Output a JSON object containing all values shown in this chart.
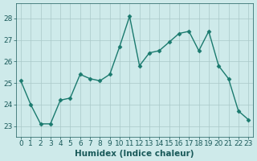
{
  "x": [
    0,
    1,
    2,
    3,
    4,
    5,
    6,
    7,
    8,
    9,
    10,
    11,
    12,
    13,
    14,
    15,
    16,
    17,
    18,
    19,
    20,
    21,
    22,
    23
  ],
  "y": [
    25.1,
    24.0,
    23.1,
    23.1,
    24.2,
    24.3,
    25.4,
    25.2,
    25.1,
    25.4,
    26.7,
    28.1,
    25.8,
    26.4,
    26.5,
    26.9,
    27.3,
    27.4,
    26.5,
    27.4,
    25.8,
    25.2,
    23.7,
    23.3
  ],
  "line_color": "#1a7a6e",
  "marker": "D",
  "marker_size": 2.5,
  "bg_color": "#ceeaea",
  "grid_color": "#aac8c8",
  "xlabel": "Humidex (Indice chaleur)",
  "ylim": [
    22.5,
    28.7
  ],
  "xlim": [
    -0.5,
    23.5
  ],
  "yticks": [
    23,
    24,
    25,
    26,
    27,
    28
  ],
  "xticks": [
    0,
    1,
    2,
    3,
    4,
    5,
    6,
    7,
    8,
    9,
    10,
    11,
    12,
    13,
    14,
    15,
    16,
    17,
    18,
    19,
    20,
    21,
    22,
    23
  ],
  "font_color": "#1a5a5a",
  "xlabel_fontsize": 7.5,
  "tick_fontsize": 6.5,
  "linewidth": 1.0
}
